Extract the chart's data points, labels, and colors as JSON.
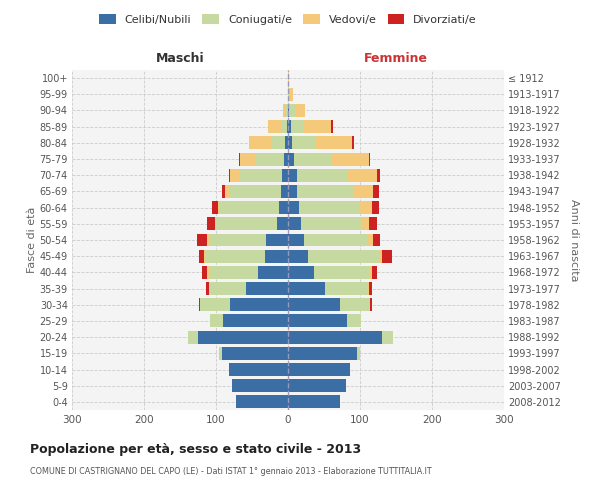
{
  "age_groups": [
    "0-4",
    "5-9",
    "10-14",
    "15-19",
    "20-24",
    "25-29",
    "30-34",
    "35-39",
    "40-44",
    "45-49",
    "50-54",
    "55-59",
    "60-64",
    "65-69",
    "70-74",
    "75-79",
    "80-84",
    "85-89",
    "90-94",
    "95-99",
    "100+"
  ],
  "birth_years": [
    "2008-2012",
    "2003-2007",
    "1998-2002",
    "1993-1997",
    "1988-1992",
    "1983-1987",
    "1978-1982",
    "1973-1977",
    "1968-1972",
    "1963-1967",
    "1958-1962",
    "1953-1957",
    "1948-1952",
    "1943-1947",
    "1938-1942",
    "1933-1937",
    "1928-1932",
    "1923-1927",
    "1918-1922",
    "1913-1917",
    "≤ 1912"
  ],
  "colors": {
    "celibi": "#3a6ea5",
    "coniugati": "#c5d9a0",
    "vedovi": "#f5c97a",
    "divorziati": "#cc2222"
  },
  "males_celibi": [
    72,
    78,
    82,
    92,
    125,
    90,
    80,
    58,
    42,
    32,
    30,
    15,
    12,
    10,
    8,
    6,
    4,
    2,
    0,
    0,
    0
  ],
  "males_coniugati": [
    0,
    0,
    0,
    4,
    14,
    18,
    42,
    52,
    68,
    82,
    80,
    85,
    82,
    72,
    58,
    38,
    18,
    8,
    3,
    0,
    0
  ],
  "males_vedovi": [
    0,
    0,
    0,
    0,
    0,
    0,
    0,
    0,
    2,
    2,
    2,
    2,
    3,
    6,
    14,
    22,
    32,
    18,
    4,
    0,
    0
  ],
  "males_divorziati": [
    0,
    0,
    0,
    0,
    0,
    0,
    2,
    4,
    8,
    8,
    14,
    10,
    8,
    4,
    2,
    2,
    0,
    0,
    0,
    0,
    0
  ],
  "females_celibi": [
    72,
    80,
    86,
    96,
    130,
    82,
    72,
    52,
    36,
    28,
    22,
    18,
    15,
    12,
    12,
    8,
    5,
    4,
    2,
    0,
    0
  ],
  "females_coniugati": [
    0,
    0,
    0,
    4,
    16,
    20,
    42,
    58,
    78,
    98,
    88,
    85,
    85,
    78,
    70,
    52,
    32,
    18,
    8,
    2,
    0
  ],
  "females_vedovi": [
    0,
    0,
    0,
    0,
    0,
    0,
    0,
    2,
    2,
    4,
    8,
    10,
    16,
    28,
    42,
    52,
    52,
    38,
    14,
    5,
    2
  ],
  "females_divorziati": [
    0,
    0,
    0,
    0,
    0,
    0,
    2,
    4,
    8,
    14,
    10,
    10,
    10,
    8,
    4,
    2,
    2,
    2,
    0,
    0,
    0
  ],
  "xlim": 300,
  "title": "Popolazione per età, sesso e stato civile - 2013",
  "subtitle": "COMUNE DI CASTRIGNANO DEL CAPO (LE) - Dati ISTAT 1° gennaio 2013 - Elaborazione TUTTITALIA.IT",
  "xlabel_left": "Maschi",
  "xlabel_right": "Femmine",
  "ylabel_left": "Fasce di età",
  "ylabel_right": "Anni di nascita",
  "legend_labels": [
    "Celibi/Nubili",
    "Coniugati/e",
    "Vedovi/e",
    "Divorziati/e"
  ],
  "bg_color": "#ffffff",
  "grid_color": "#cccccc",
  "xticks": [
    -300,
    -200,
    -100,
    0,
    100,
    200,
    300
  ]
}
